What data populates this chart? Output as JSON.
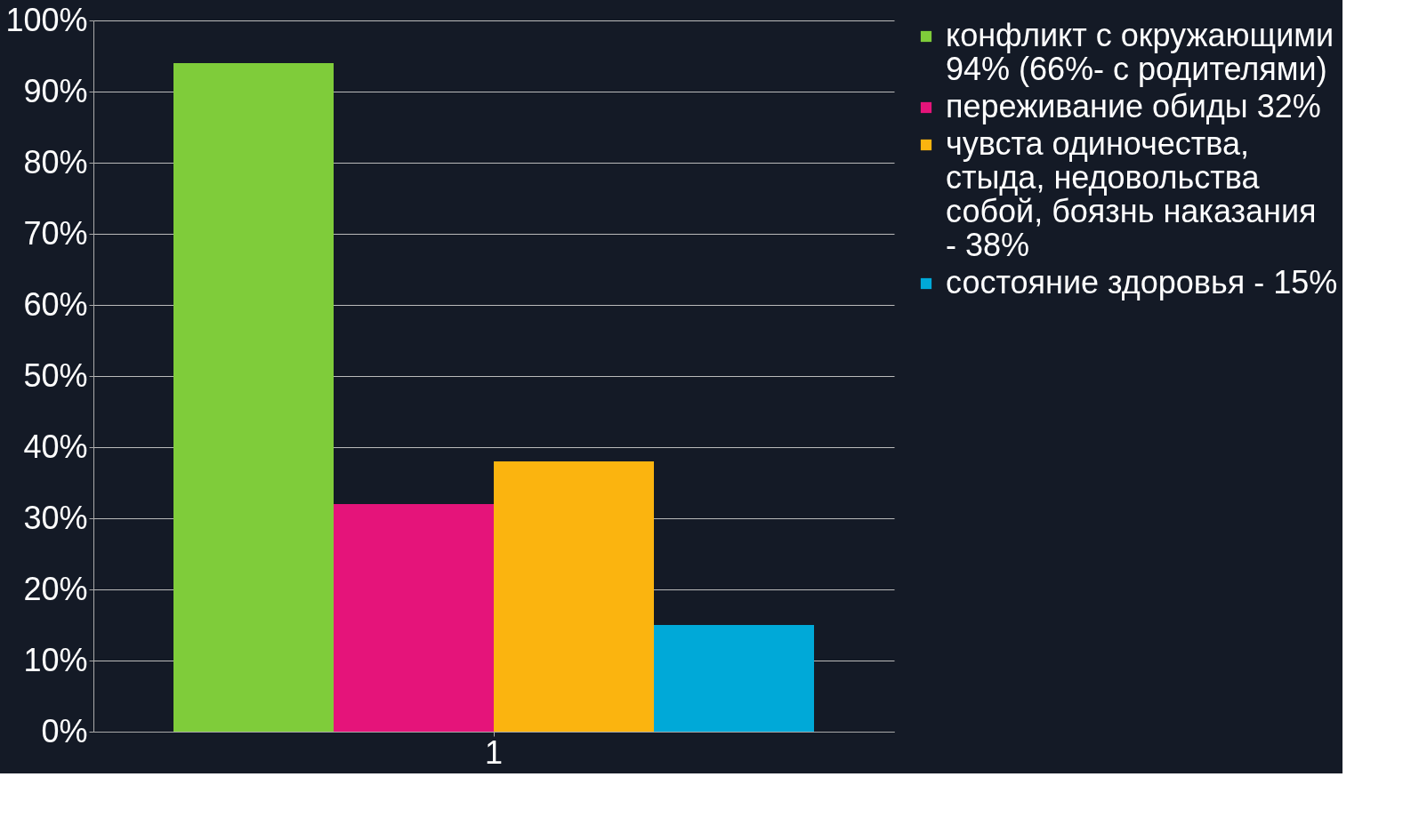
{
  "chart_data": {
    "type": "bar",
    "categories": [
      "1"
    ],
    "series": [
      {
        "name": "конфликт с окружающими 94% (66%- с родителями)",
        "color": "#7fcc3a",
        "values": [
          94
        ]
      },
      {
        "name": "переживание обиды 32%",
        "color": "#e5147a",
        "values": [
          32
        ]
      },
      {
        "name": "чувста одиночества, стыда, недовольства собой, боязнь наказания - 38%",
        "color": "#fbb40f",
        "values": [
          38
        ]
      },
      {
        "name": "состояние здоровья - 15%",
        "color": "#00a9d8",
        "values": [
          15
        ]
      }
    ],
    "ylim": [
      0,
      100
    ],
    "yticks": [
      {
        "value": 0,
        "label": "0%"
      },
      {
        "value": 10,
        "label": "10%"
      },
      {
        "value": 20,
        "label": "20%"
      },
      {
        "value": 30,
        "label": "30%"
      },
      {
        "value": 40,
        "label": "40%"
      },
      {
        "value": 50,
        "label": "50%"
      },
      {
        "value": 60,
        "label": "60%"
      },
      {
        "value": 70,
        "label": "70%"
      },
      {
        "value": 80,
        "label": "80%"
      },
      {
        "value": 90,
        "label": "90%"
      },
      {
        "value": 100,
        "label": "100%"
      }
    ],
    "grid": "y",
    "legend": "right"
  }
}
